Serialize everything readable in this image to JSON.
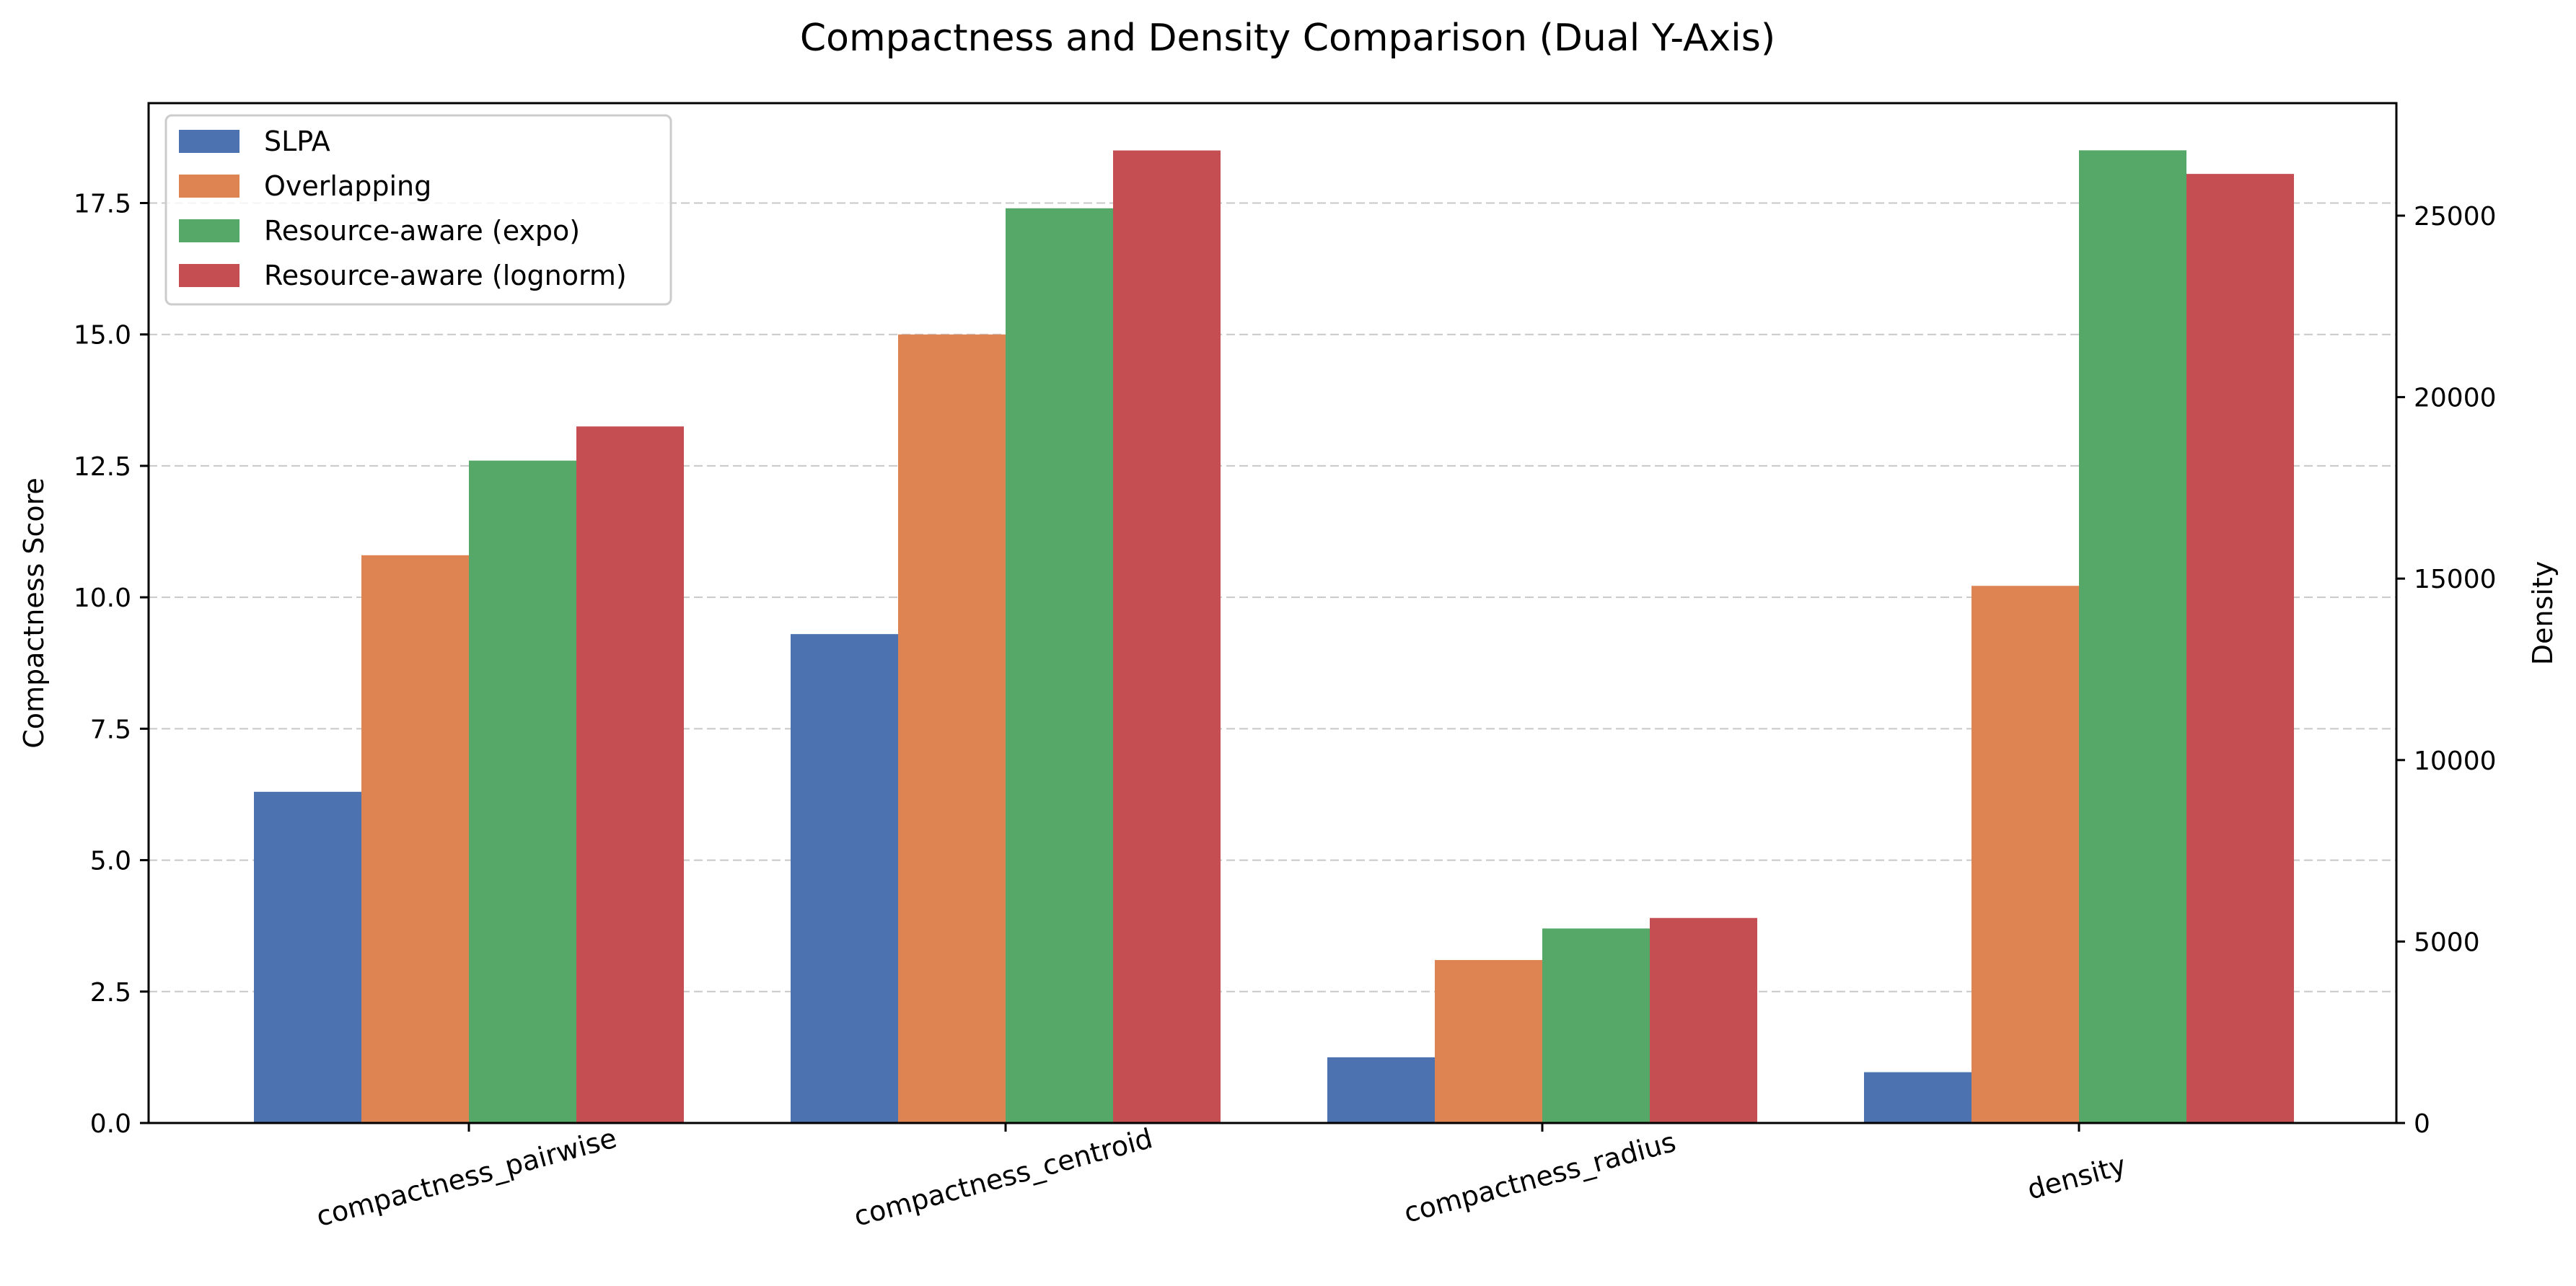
{
  "chart_data": {
    "type": "bar",
    "title": "Compactness and Density Comparison (Dual Y-Axis)",
    "xlabel": "",
    "ylabel_left": "Compactness Score",
    "ylabel_right": "Density",
    "categories": [
      "compactness_pairwise",
      "compactness_centroid",
      "compactness_radius",
      "density"
    ],
    "left_axis_categories": [
      "compactness_pairwise",
      "compactness_centroid",
      "compactness_radius"
    ],
    "right_axis_categories": [
      "density"
    ],
    "ylim_left": [
      0,
      19.4
    ],
    "ylim_right": [
      0,
      28100
    ],
    "left_ticks": [
      "0.0",
      "2.5",
      "5.0",
      "7.5",
      "10.0",
      "12.5",
      "15.0",
      "17.5"
    ],
    "left_tick_values": [
      0,
      2.5,
      5,
      7.5,
      10,
      12.5,
      15,
      17.5
    ],
    "right_ticks": [
      "0",
      "5000",
      "10000",
      "15000",
      "20000",
      "25000"
    ],
    "right_tick_values": [
      0,
      5000,
      10000,
      15000,
      20000,
      25000
    ],
    "grid": "horizontal dashed (left axis)",
    "legend_position": "top-left",
    "series": [
      {
        "name": "SLPA",
        "color": "#4c72b0",
        "values": [
          6.3,
          9.3,
          1.25,
          1400
        ]
      },
      {
        "name": "Overlapping",
        "color": "#dd8452",
        "values": [
          10.8,
          15.0,
          3.1,
          14800
        ]
      },
      {
        "name": "Resource-aware (expo)",
        "color": "#55a868",
        "values": [
          12.6,
          17.4,
          3.7,
          26800
        ]
      },
      {
        "name": "Resource-aware (lognorm)",
        "color": "#c44e52",
        "values": [
          13.25,
          18.5,
          3.9,
          26150
        ]
      }
    ]
  }
}
